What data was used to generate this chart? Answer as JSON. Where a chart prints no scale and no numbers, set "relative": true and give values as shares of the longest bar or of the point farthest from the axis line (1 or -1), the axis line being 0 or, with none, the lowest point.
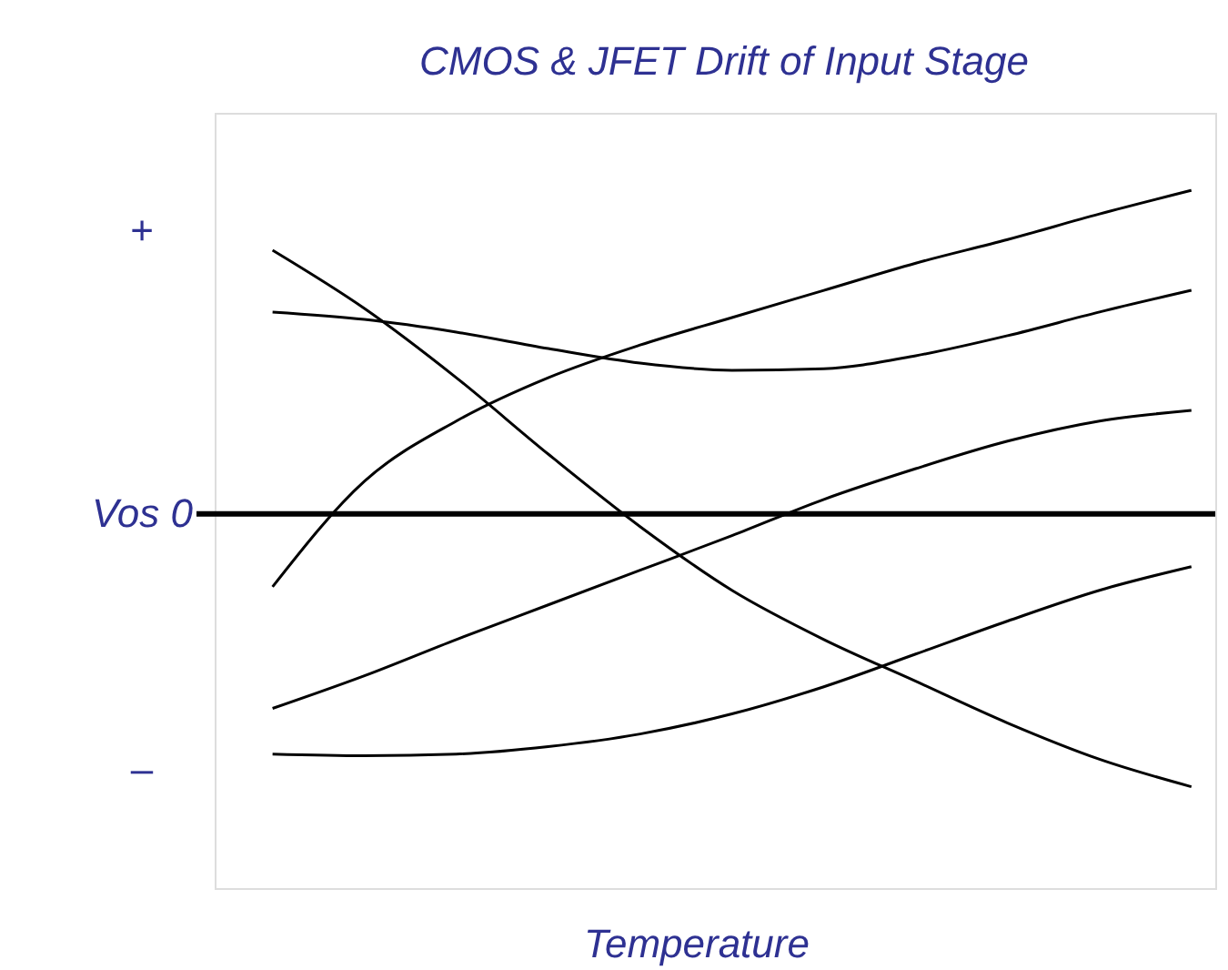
{
  "chart_data": {
    "type": "line",
    "title": "CMOS & JFET Drift of Input Stage",
    "xlabel": "Temperature",
    "annotations": [
      "+",
      "Vos  0",
      "–"
    ],
    "relative": true,
    "categories": [
      null,
      null,
      null,
      null,
      null,
      null,
      null,
      null,
      null,
      null,
      null
    ],
    "series": [
      {
        "color": "#000000",
        "values": [
          -0.225,
          0.101,
          0.287,
          0.421,
          0.522,
          0.607,
          0.691,
          0.775,
          0.848,
          0.927,
          1.0
        ]
      },
      {
        "color": "#000000",
        "values": [
          0.815,
          0.635,
          0.421,
          0.185,
          -0.039,
          -0.236,
          -0.388,
          -0.517,
          -0.646,
          -0.758,
          -0.843
        ]
      },
      {
        "color": "#000000",
        "values": [
          0.624,
          0.601,
          0.562,
          0.511,
          0.466,
          0.444,
          0.449,
          0.489,
          0.551,
          0.624,
          0.691
        ]
      },
      {
        "color": "#000000",
        "values": [
          -0.601,
          -0.5,
          -0.388,
          -0.281,
          -0.174,
          -0.067,
          0.045,
          0.14,
          0.225,
          0.287,
          0.32
        ]
      },
      {
        "color": "#000000",
        "values": [
          -0.742,
          -0.747,
          -0.742,
          -0.719,
          -0.68,
          -0.618,
          -0.534,
          -0.433,
          -0.331,
          -0.236,
          -0.163
        ]
      }
    ]
  }
}
